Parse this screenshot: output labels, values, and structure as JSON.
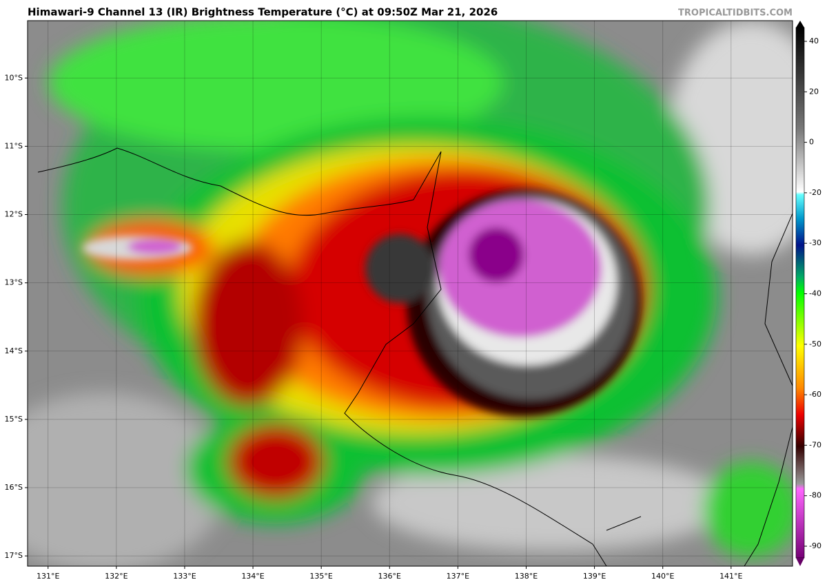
{
  "header": {
    "title": "Himawari-9 Channel 13 (IR) Brightness Temperature (°C) at 09:50Z Mar 21, 2026",
    "watermark": "TROPICALTIDBITS.COM"
  },
  "map": {
    "xlim": [
      130.7,
      141.9
    ],
    "ylim": [
      -17.15,
      -9.16
    ],
    "xticks": [
      {
        "value": 131,
        "label": "131°E"
      },
      {
        "value": 132,
        "label": "132°E"
      },
      {
        "value": 133,
        "label": "133°E"
      },
      {
        "value": 134,
        "label": "134°E"
      },
      {
        "value": 135,
        "label": "135°E"
      },
      {
        "value": 136,
        "label": "136°E"
      },
      {
        "value": 137,
        "label": "137°E"
      },
      {
        "value": 138,
        "label": "138°E"
      },
      {
        "value": 139,
        "label": "139°E"
      },
      {
        "value": 140,
        "label": "140°E"
      },
      {
        "value": 141,
        "label": "141°E"
      }
    ],
    "yticks": [
      {
        "value": -10,
        "label": "10°S"
      },
      {
        "value": -11,
        "label": "11°S"
      },
      {
        "value": -12,
        "label": "12°S"
      },
      {
        "value": -13,
        "label": "13°S"
      },
      {
        "value": -14,
        "label": "14°S"
      },
      {
        "value": -15,
        "label": "15°S"
      },
      {
        "value": -16,
        "label": "16°S"
      },
      {
        "value": -17,
        "label": "17°S"
      }
    ]
  },
  "colorbar": {
    "ticks": [
      40,
      20,
      0,
      -20,
      -30,
      -40,
      -50,
      -60,
      -70,
      -80,
      -90
    ]
  }
}
